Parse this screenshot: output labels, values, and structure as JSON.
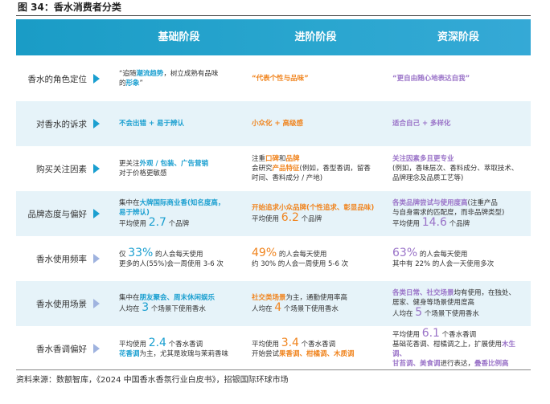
{
  "header": {
    "title": "图 34：香水消费者分类"
  },
  "table": {
    "columns": [
      "基础阶段",
      "进阶阶段",
      "资深阶段"
    ],
    "rows": [
      {
        "label": "香水的角色定位",
        "cells": [
          {
            "lines": [
              [
                {
                  "text": "“追随"
                },
                {
                  "text": "潮流趋势",
                  "color": "#1a9fd0"
                },
                {
                  "text": "，树立成熟有品味"
                }
              ],
              [
                {
                  "text": "的"
                },
                {
                  "text": "形象",
                  "color": "#1a9fd0"
                },
                {
                  "text": "”"
                }
              ]
            ]
          },
          {
            "lines": [
              [
                {
                  "text": "“代表个性与品味”",
                  "color": "#f0841e"
                }
              ]
            ]
          },
          {
            "lines": [
              [
                {
                  "text": "“更自由随心地表达自我”",
                  "color": "#9a73c8"
                }
              ]
            ]
          }
        ]
      },
      {
        "label": "对香水的诉求",
        "cells": [
          {
            "lines": [
              [
                {
                  "text": "不会出错 + 易于辨认",
                  "color": "#1a9fd0"
                }
              ]
            ]
          },
          {
            "lines": [
              [
                {
                  "text": "小众化 + 高级感",
                  "color": "#f0841e"
                }
              ]
            ]
          },
          {
            "lines": [
              [
                {
                  "text": "适合自己 + 多样化",
                  "color": "#9a73c8"
                }
              ]
            ]
          }
        ]
      },
      {
        "label": "购买关注因素",
        "cells": [
          {
            "lines": [
              [
                {
                  "text": "更关注"
                },
                {
                  "text": "外观 / 包装、广告营销",
                  "color": "#1a9fd0"
                }
              ],
              [
                {
                  "text": "对于价格更敏感"
                }
              ]
            ]
          },
          {
            "lines": [
              [
                {
                  "text": "注重"
                },
                {
                  "text": "口碑",
                  "color": "#f0841e"
                },
                {
                  "text": "和"
                },
                {
                  "text": "品牌",
                  "color": "#f0841e"
                }
              ],
              [
                {
                  "text": "会研究"
                },
                {
                  "text": "产品特征",
                  "color": "#f0841e"
                },
                {
                  "text": "(例如，香型香调，留香"
                }
              ],
              [
                {
                  "text": "时间、香料成分 / 产地)"
                }
              ]
            ]
          },
          {
            "lines": [
              [
                {
                  "text": "关注因素多且更专业",
                  "color": "#9a73c8"
                }
              ],
              [
                {
                  "text": "(例如，香味层次、香料成分、萃取技术、"
                }
              ],
              [
                {
                  "text": "品牌理念及品质工艺等)"
                }
              ]
            ]
          }
        ]
      },
      {
        "label": "品牌态度与偏好",
        "cells": [
          {
            "lines": [
              [
                {
                  "text": "集中在"
                },
                {
                  "text": "大牌国际商业香(知名度高，",
                  "color": "#1a9fd0"
                }
              ],
              [
                {
                  "text": "易于辨认)",
                  "color": "#1a9fd0"
                }
              ],
              [
                {
                  "text": "平均使用 "
                },
                {
                  "text": "2.7",
                  "color": "#1a9fd0",
                  "big": true
                },
                {
                  "text": " 个品牌"
                }
              ]
            ]
          },
          {
            "lines": [
              [
                {
                  "text": "开始追求小众品牌(个性追求、彰显品味)",
                  "color": "#f0841e"
                }
              ],
              [
                {
                  "text": "平均使用 "
                },
                {
                  "text": "6.2",
                  "color": "#f0841e",
                  "big": true
                },
                {
                  "text": " 个品牌"
                }
              ]
            ]
          },
          {
            "lines": [
              [
                {
                  "text": "各类品牌尝试与使用度高",
                  "color": "#9a73c8"
                },
                {
                  "text": "(注重产品"
                }
              ],
              [
                {
                  "text": "与自身需求的匹配度，而非品牌类型)"
                }
              ],
              [
                {
                  "text": "平均使用 "
                },
                {
                  "text": "14.6",
                  "color": "#9a73c8",
                  "big": true
                },
                {
                  "text": " 个品牌"
                }
              ]
            ]
          }
        ]
      },
      {
        "label": "香水使用频率",
        "cells": [
          {
            "lines": [
              [
                {
                  "text": "仅 "
                },
                {
                  "text": "33%",
                  "color": "#1a9fd0",
                  "big": true
                },
                {
                  "text": " 的人会每天使用"
                }
              ],
              [
                {
                  "text": "更多的人(55%)会一周使用 3-6 次"
                }
              ]
            ]
          },
          {
            "lines": [
              [
                {
                  "text": "49%",
                  "color": "#f0841e",
                  "big": true
                },
                {
                  "text": " 的人会每天使用"
                }
              ],
              [
                {
                  "text": "约 30% 的人会一周使用 5-6 次"
                }
              ]
            ]
          },
          {
            "lines": [
              [
                {
                  "text": "63%",
                  "color": "#9a73c8",
                  "big": true
                },
                {
                  "text": " 的人会每天使用"
                }
              ],
              [
                {
                  "text": "其中有 22% 的人会一天使用多次"
                }
              ]
            ]
          }
        ]
      },
      {
        "label": "香水使用场景",
        "cells": [
          {
            "lines": [
              [
                {
                  "text": "集中在"
                },
                {
                  "text": "朋友聚会、周末休闲娱乐",
                  "color": "#1a9fd0"
                }
              ],
              [
                {
                  "text": "人均在 "
                },
                {
                  "text": "3",
                  "color": "#1a9fd0",
                  "big": true
                },
                {
                  "text": " 个场景下使用香水"
                }
              ]
            ]
          },
          {
            "lines": [
              [
                {
                  "text": "社交类场景",
                  "color": "#f0841e"
                },
                {
                  "text": "为主，通勤使用率高"
                }
              ],
              [
                {
                  "text": "人均在 "
                },
                {
                  "text": "4",
                  "color": "#f0841e",
                  "big": true
                },
                {
                  "text": " 个场景下使用香水"
                }
              ]
            ]
          },
          {
            "lines": [
              [
                {
                  "text": "各类日常、社交场景",
                  "color": "#9a73c8"
                },
                {
                  "text": "均有使用，在独处、"
                }
              ],
              [
                {
                  "text": "居家、健身等场景使用度高"
                }
              ],
              [
                {
                  "text": "人均在 "
                },
                {
                  "text": "5",
                  "color": "#9a73c8",
                  "big": true
                },
                {
                  "text": " 个场景下使用香水"
                }
              ]
            ]
          }
        ]
      },
      {
        "label": "香水香调偏好",
        "cells": [
          {
            "lines": [
              [
                {
                  "text": "平均使用 "
                },
                {
                  "text": "2.4",
                  "color": "#1a9fd0",
                  "big": true
                },
                {
                  "text": " 个香水香调"
                }
              ],
              [
                {
                  "text": "花香调",
                  "color": "#1a9fd0"
                },
                {
                  "text": "为主，尤其是玫瑰与茉莉香味"
                }
              ]
            ]
          },
          {
            "lines": [
              [
                {
                  "text": "平均使用 "
                },
                {
                  "text": "3.4",
                  "color": "#f0841e",
                  "big": true
                },
                {
                  "text": " 个香水香调"
                }
              ],
              [
                {
                  "text": "开始尝试"
                },
                {
                  "text": "果香调、柑橘调、木质调",
                  "color": "#f0841e"
                }
              ]
            ]
          },
          {
            "lines": [
              [
                {
                  "text": "平均使用 "
                },
                {
                  "text": "6.1",
                  "color": "#9a73c8",
                  "big": true
                },
                {
                  "text": " 个香水香调"
                }
              ],
              [
                {
                  "text": "基础花香调、柑橘调之上，扩展使用"
                },
                {
                  "text": "木生调、",
                  "color": "#9a73c8"
                }
              ],
              [
                {
                  "text": "甘苔调、美食调",
                  "color": "#9a73c8"
                },
                {
                  "text": "进行表达，"
                },
                {
                  "text": "叠香比例高",
                  "color": "#9a73c8"
                }
              ]
            ]
          }
        ]
      }
    ]
  },
  "source": "资料来源：数额智库，《2024 中国香水香氛行业白皮书》，招银国际环球市场"
}
